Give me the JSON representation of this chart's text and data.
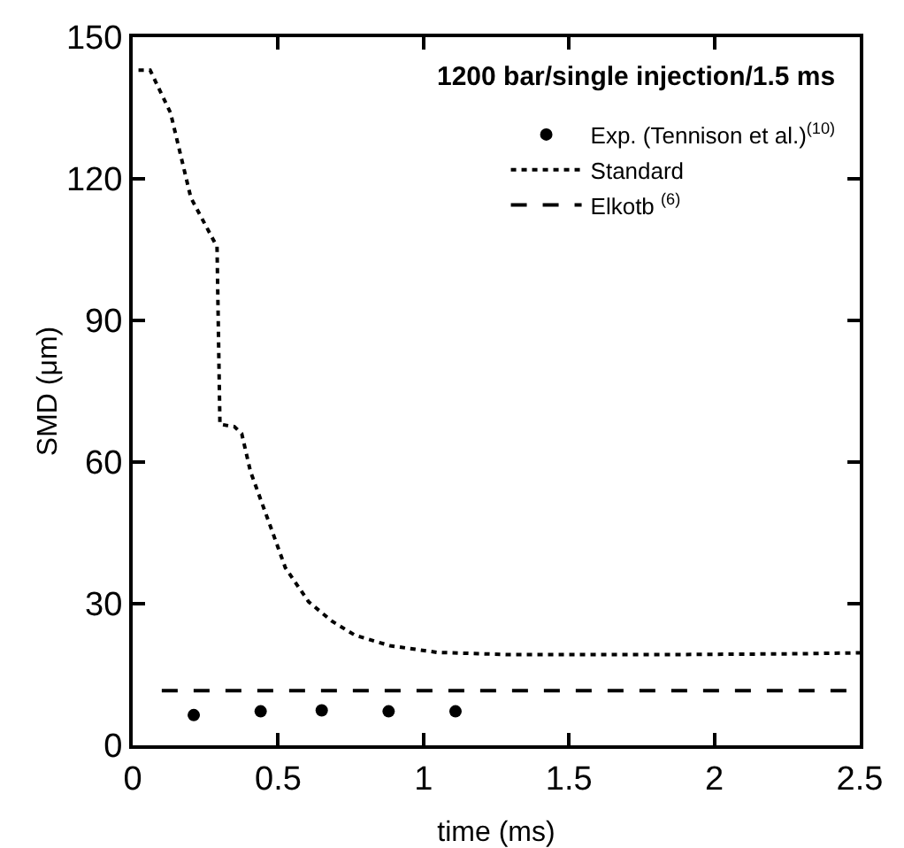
{
  "chart_data": {
    "type": "line",
    "title": "1200 bar/single injection/1.5 ms",
    "xlabel": "time (ms)",
    "ylabel": "SMD (μm)",
    "xlim": [
      0,
      2.5
    ],
    "xticks": [
      0,
      0.5,
      1,
      1.5,
      2,
      2.5
    ],
    "ylim": [
      0,
      150
    ],
    "yticks": [
      0,
      30,
      60,
      90,
      120,
      150
    ],
    "grid": false,
    "legend": "top right",
    "series": [
      {
        "name": "Exp. (Tennison et al.)$^{(10)}$",
        "type": "scatter",
        "marker": "circle",
        "color": "#000000",
        "x": [
          0.21,
          0.44,
          0.65,
          0.88,
          1.11
        ],
        "values": [
          6.4,
          7.2,
          7.4,
          7.2,
          7.2
        ]
      },
      {
        "name": "Standard",
        "line_style": "dotted",
        "color": "#000000",
        "x": [
          0.02,
          0.06,
          0.13,
          0.2,
          0.29,
          0.3,
          0.35,
          0.375,
          0.405,
          0.47,
          0.525,
          0.605,
          0.685,
          0.765,
          0.885,
          1.045,
          1.3,
          1.8,
          2.3,
          2.5
        ],
        "values": [
          143,
          143,
          134,
          116,
          105.6,
          68,
          67.5,
          66,
          58,
          47,
          37.6,
          30.4,
          26.3,
          23.3,
          21.1,
          19.7,
          19.2,
          19.2,
          19.4,
          19.6
        ]
      },
      {
        "name": "Elkotb $^{(6)}$",
        "line_style": "dashed",
        "color": "#000000",
        "x": [
          0.1,
          2.5
        ],
        "values": [
          11.6,
          11.6
        ]
      }
    ]
  }
}
